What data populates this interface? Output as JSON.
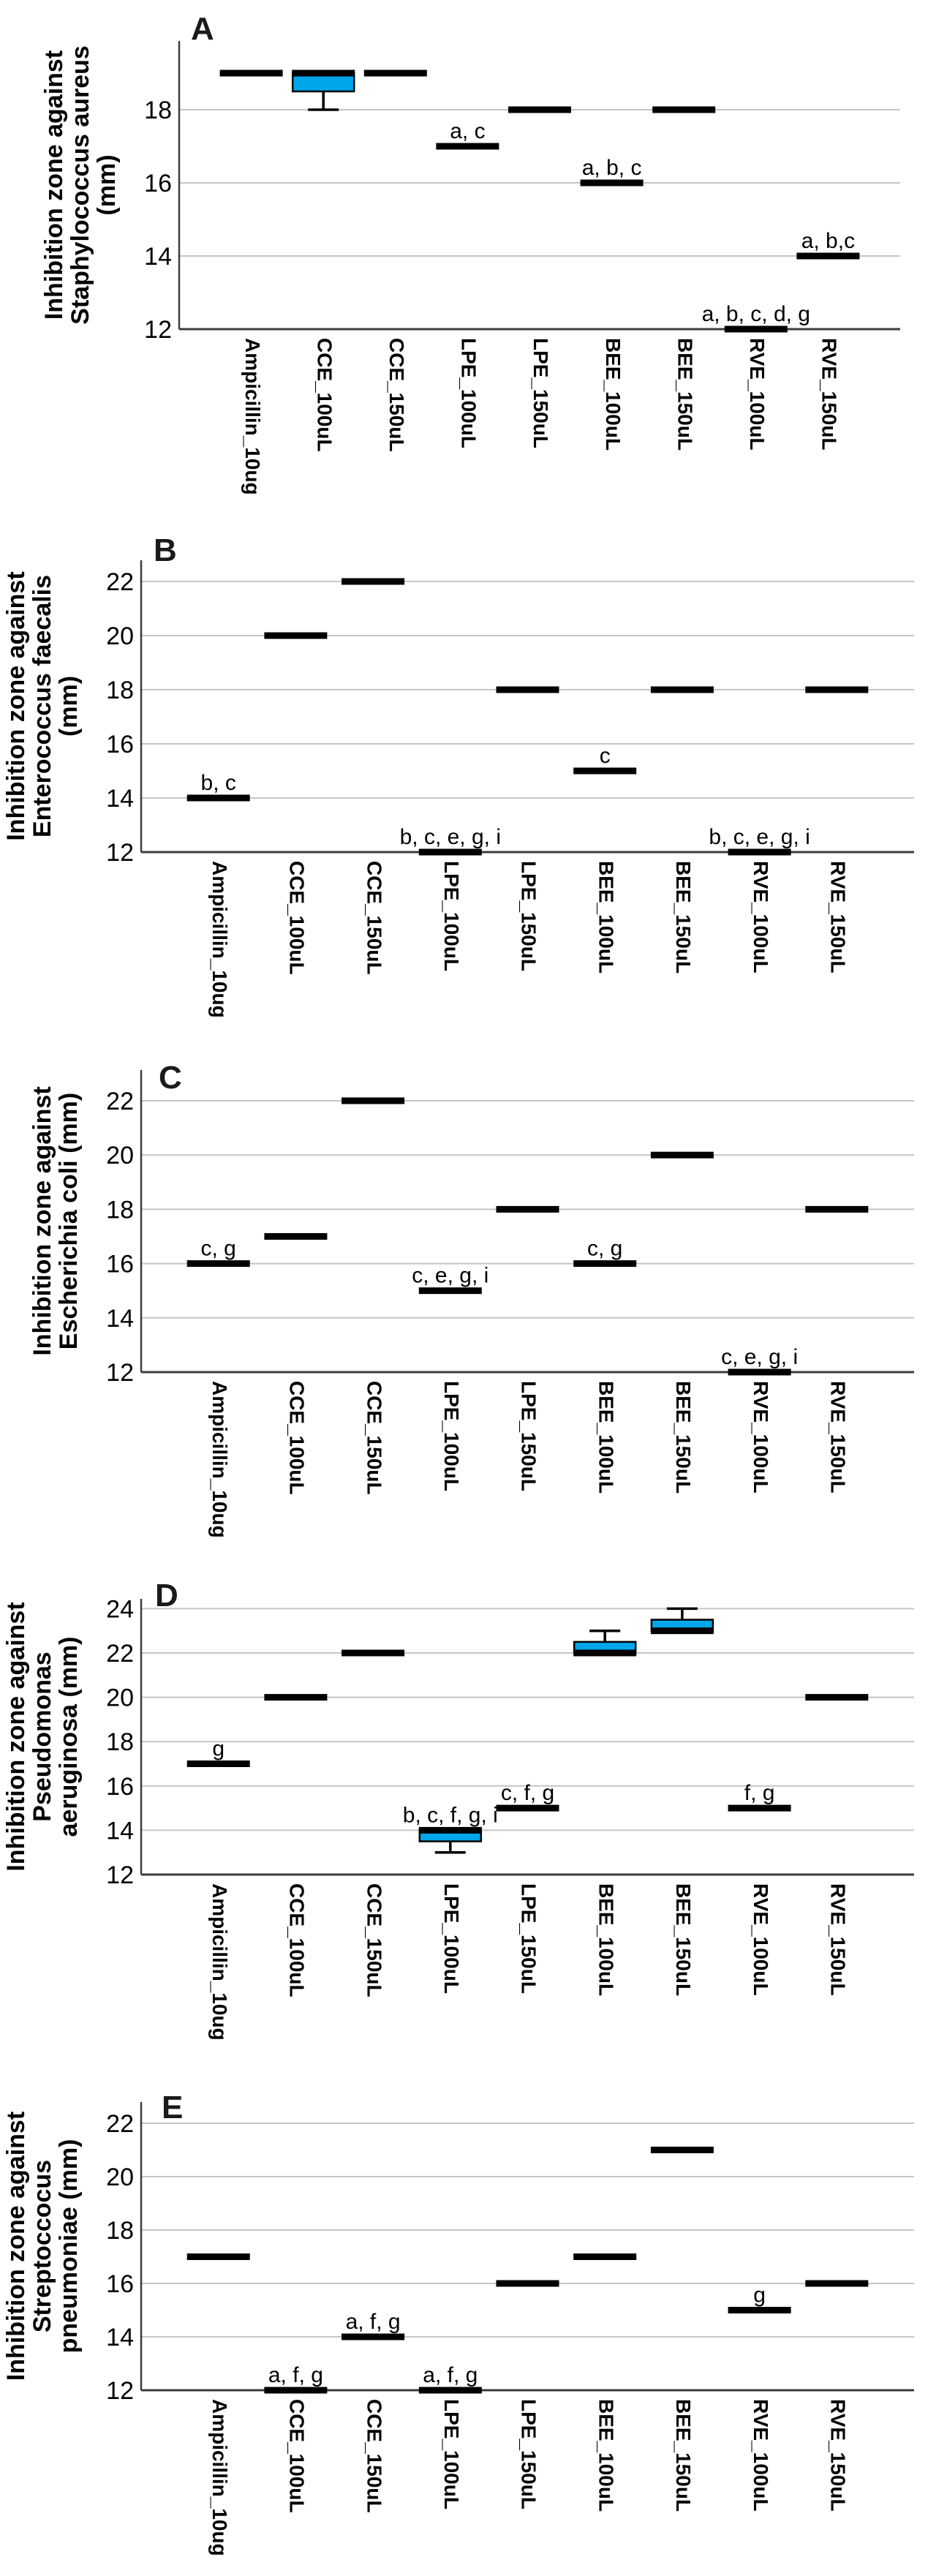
{
  "figure": {
    "description": "Five-panel box plot figure of antibacterial inhibition zones",
    "background": "#ffffff",
    "box_fill_color": "#00A6EA",
    "box_border_color": "#000000",
    "median_color": "#000000",
    "gridline_color": "#c5c5c5",
    "axis_color": "#3c3c3c",
    "panel_letters": [
      "A",
      "B",
      "C",
      "D",
      "E"
    ]
  },
  "categories": [
    "Ampicillin_10ug",
    "CCE_100uL",
    "CCE_150uL",
    "LPE_100uL",
    "LPE_150uL",
    "BEE_100uL",
    "BEE_150uL",
    "RVE_100uL",
    "RVE_150uL"
  ],
  "chart_data": [
    {
      "type": "box",
      "panel": "A",
      "ylabel": "Inhibition zone against Staphylococcus aureus (mm)",
      "ylabel_lines": [
        "Inhibition zone against",
        "Staphylococcus aureus",
        "(mm)"
      ],
      "ylim": [
        12,
        19.9
      ],
      "yticks": [
        12,
        14,
        16,
        18
      ],
      "grid": true,
      "legend": "none",
      "boxes": [
        {
          "category": "Ampicillin_10ug",
          "median": 19
        },
        {
          "category": "CCE_100uL",
          "median": 19,
          "q1": 18.5,
          "q3": 19,
          "whisker_low": 18
        },
        {
          "category": "CCE_150uL",
          "median": 19
        },
        {
          "category": "LPE_100uL",
          "median": 17,
          "label": "a, c"
        },
        {
          "category": "LPE_150uL",
          "median": 18
        },
        {
          "category": "BEE_100uL",
          "median": 16,
          "label": "a, b, c"
        },
        {
          "category": "BEE_150uL",
          "median": 18
        },
        {
          "category": "RVE_100uL",
          "median": 12,
          "label": "a, b, c, d, g"
        },
        {
          "category": "RVE_150uL",
          "median": 14,
          "label": "a, b,c"
        }
      ]
    },
    {
      "type": "box",
      "panel": "B",
      "ylabel": "Inhibition zone against Enterococcus faecalis (mm)",
      "ylabel_lines": [
        "Inhibition zone against",
        "Enterococcus faecalis",
        "(mm)"
      ],
      "ylim": [
        12,
        22.8
      ],
      "yticks": [
        12,
        14,
        16,
        18,
        20,
        22
      ],
      "grid": true,
      "legend": "none",
      "boxes": [
        {
          "category": "Ampicillin_10ug",
          "median": 14,
          "label": "b, c"
        },
        {
          "category": "CCE_100uL",
          "median": 20
        },
        {
          "category": "CCE_150uL",
          "median": 22
        },
        {
          "category": "LPE_100uL",
          "median": 12,
          "label": "b, c, e, g, i"
        },
        {
          "category": "LPE_150uL",
          "median": 18
        },
        {
          "category": "BEE_100uL",
          "median": 15,
          "label": "c"
        },
        {
          "category": "BEE_150uL",
          "median": 18
        },
        {
          "category": "RVE_100uL",
          "median": 12,
          "label": "b, c, e, g, i"
        },
        {
          "category": "RVE_150uL",
          "median": 18
        }
      ]
    },
    {
      "type": "box",
      "panel": "C",
      "ylabel": "Inhibition zone against Escherichia coli (mm)",
      "ylabel_lines": [
        "Inhibition zone against",
        "Escherichia coli (mm)"
      ],
      "ylim": [
        12,
        23.1
      ],
      "yticks": [
        12,
        14,
        16,
        18,
        20,
        22
      ],
      "grid": true,
      "legend": "none",
      "boxes": [
        {
          "category": "Ampicillin_10ug",
          "median": 16,
          "label": "c, g"
        },
        {
          "category": "CCE_100uL",
          "median": 17
        },
        {
          "category": "CCE_150uL",
          "median": 22
        },
        {
          "category": "LPE_100uL",
          "median": 15,
          "label": "c, e, g, i"
        },
        {
          "category": "LPE_150uL",
          "median": 18
        },
        {
          "category": "BEE_100uL",
          "median": 16,
          "label": "c, g"
        },
        {
          "category": "BEE_150uL",
          "median": 20
        },
        {
          "category": "RVE_100uL",
          "median": 12,
          "label": "c, e, g, i"
        },
        {
          "category": "RVE_150uL",
          "median": 18
        }
      ]
    },
    {
      "type": "box",
      "panel": "D",
      "ylabel": "Inhibition zone against Pseudomonas aeruginosa (mm)",
      "ylabel_lines": [
        "Inhibition zone against",
        "Pseudomonas",
        "aeruginosa (mm)"
      ],
      "ylim": [
        12,
        24.4
      ],
      "yticks": [
        12,
        14,
        16,
        18,
        20,
        22,
        24
      ],
      "grid": true,
      "legend": "none",
      "boxes": [
        {
          "category": "Ampicillin_10ug",
          "median": 17,
          "label": "g"
        },
        {
          "category": "CCE_100uL",
          "median": 20
        },
        {
          "category": "CCE_150uL",
          "median": 22
        },
        {
          "category": "LPE_100uL",
          "median": 14,
          "q1": 13.5,
          "q3": 14,
          "whisker_low": 13,
          "label": "b, c, f, g, i"
        },
        {
          "category": "LPE_150uL",
          "median": 15,
          "label": "c, f, g"
        },
        {
          "category": "BEE_100uL",
          "median": 22,
          "q1": 22,
          "q3": 22.5,
          "whisker_high": 23
        },
        {
          "category": "BEE_150uL",
          "median": 23,
          "q1": 23,
          "q3": 23.5,
          "whisker_high": 24
        },
        {
          "category": "RVE_100uL",
          "median": 15,
          "label": "f, g"
        },
        {
          "category": "RVE_150uL",
          "median": 20
        }
      ]
    },
    {
      "type": "box",
      "panel": "E",
      "ylabel": "Inhibition zone against Streptoccocus pneumoniae (mm)",
      "ylabel_lines": [
        "Inhibition zone against",
        "Streptoccocus",
        "pneumoniae (mm)"
      ],
      "ylim": [
        12,
        22.8
      ],
      "yticks": [
        12,
        14,
        16,
        18,
        20,
        22
      ],
      "grid": true,
      "legend": "none",
      "boxes": [
        {
          "category": "Ampicillin_10ug",
          "median": 17
        },
        {
          "category": "CCE_100uL",
          "median": 12,
          "label": "a, f, g"
        },
        {
          "category": "CCE_150uL",
          "median": 14,
          "label": "a, f, g"
        },
        {
          "category": "LPE_100uL",
          "median": 12,
          "label": "a, f, g"
        },
        {
          "category": "LPE_150uL",
          "median": 16
        },
        {
          "category": "BEE_100uL",
          "median": 17
        },
        {
          "category": "BEE_150uL",
          "median": 21
        },
        {
          "category": "RVE_100uL",
          "median": 15,
          "label": "g"
        },
        {
          "category": "RVE_150uL",
          "median": 16
        }
      ]
    }
  ]
}
